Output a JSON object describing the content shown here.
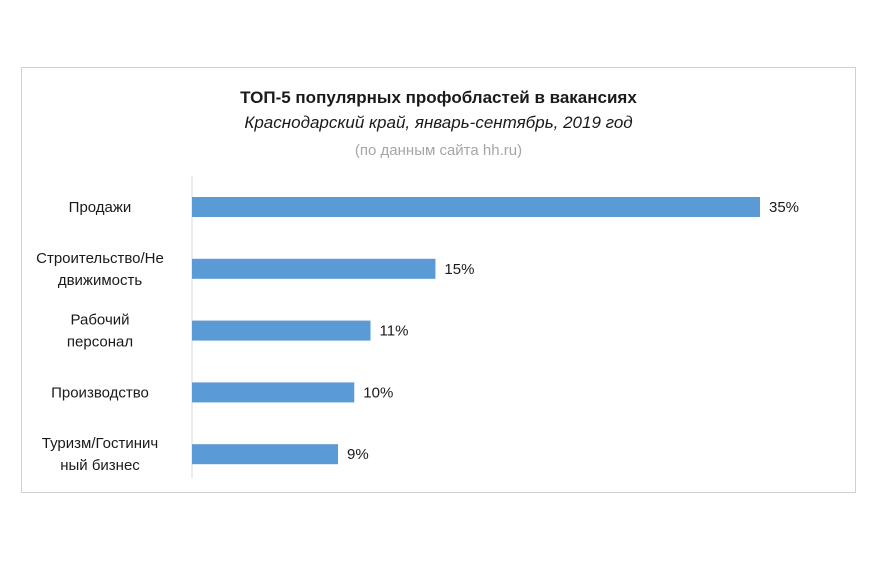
{
  "chart_data": {
    "type": "bar",
    "orientation": "horizontal",
    "title": "ТОП-5 популярных профобластей в вакансиях",
    "subtitle": "Краснодарский край, январь-сентябрь, 2019 год",
    "source": "(по данным сайта hh.ru)",
    "categories": [
      [
        "Продажи"
      ],
      [
        "Строительство/Не",
        "движимость"
      ],
      [
        "Рабочий",
        "персонал"
      ],
      [
        "Производство"
      ],
      [
        "Туризм/Гостинич",
        "ный бизнес"
      ]
    ],
    "values": [
      35,
      15,
      11,
      10,
      9
    ],
    "value_labels": [
      "35%",
      "15%",
      "11%",
      "10%",
      "9%"
    ],
    "xlim": [
      0,
      35
    ],
    "grid": false,
    "legend": "none",
    "bar_color": "#5b9bd5"
  }
}
